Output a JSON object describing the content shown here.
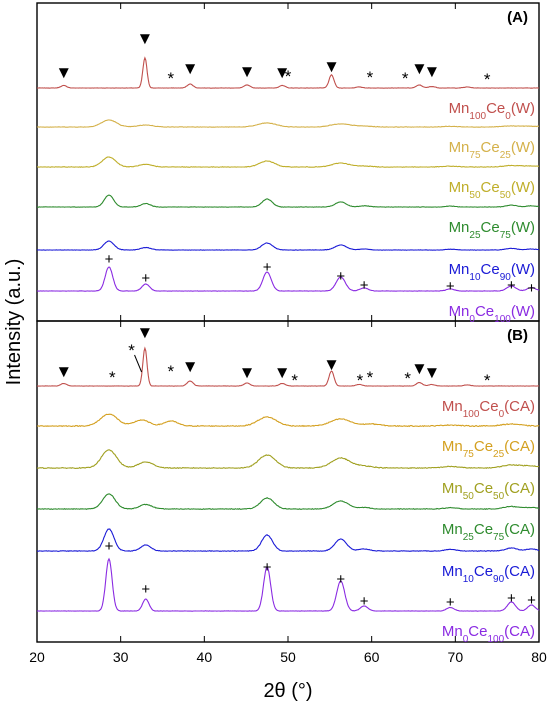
{
  "chart_data": {
    "type": "line",
    "xlabel": "2θ (°)",
    "ylabel": "Intensity (a.u.)",
    "xlim": [
      20,
      80
    ],
    "x_ticks": [
      "20",
      "30",
      "40",
      "50",
      "60",
      "70",
      "80"
    ],
    "grid": false,
    "panels": [
      {
        "tag": "(A)",
        "series": [
          {
            "name_parts": [
              [
                "Mn",
                ""
              ],
              [
                "100",
                "sub"
              ],
              [
                "Ce",
                ""
              ],
              [
                "0",
                "sub"
              ],
              [
                "(W)",
                ""
              ]
            ],
            "color": "#c0504d",
            "type": "perovskite",
            "noise": 0.35,
            "peaks": [
              [
                23.2,
                2.5,
                0.35
              ],
              [
                32.9,
                30,
                0.25
              ],
              [
                38.3,
                4,
                0.35
              ],
              [
                45.1,
                3,
                0.35
              ],
              [
                49.3,
                2.5,
                0.35
              ],
              [
                55.2,
                13,
                0.3
              ],
              [
                58.5,
                1,
                0.4
              ],
              [
                65.7,
                3,
                0.35
              ],
              [
                67.2,
                1.5,
                0.4
              ],
              [
                71.4,
                1,
                0.4
              ]
            ]
          },
          {
            "name_parts": [
              [
                "Mn",
                ""
              ],
              [
                "75",
                "sub"
              ],
              [
                "Ce",
                ""
              ],
              [
                "25",
                "sub"
              ],
              [
                "(W)",
                ""
              ]
            ],
            "color": "#d4b14a",
            "type": "ceria",
            "noise": 0.5,
            "peaks": [
              [
                28.6,
                7,
                0.9
              ],
              [
                33.0,
                2,
                0.9
              ],
              [
                47.5,
                4,
                1.1
              ],
              [
                56.3,
                3,
                1.2
              ],
              [
                59.1,
                0.8,
                1
              ],
              [
                69.4,
                0.6,
                1
              ],
              [
                76.7,
                1,
                1.1
              ],
              [
                79.1,
                0.7,
                1
              ]
            ]
          },
          {
            "name_parts": [
              [
                "Mn",
                ""
              ],
              [
                "50",
                "sub"
              ],
              [
                "Ce",
                ""
              ],
              [
                "50",
                "sub"
              ],
              [
                "(W)",
                ""
              ]
            ],
            "color": "#bfae2a",
            "type": "ceria",
            "noise": 0.55,
            "peaks": [
              [
                28.6,
                10,
                0.8
              ],
              [
                33.0,
                2.5,
                0.8
              ],
              [
                47.5,
                6,
                0.9
              ],
              [
                56.3,
                4,
                1.0
              ],
              [
                59.1,
                1,
                0.9
              ],
              [
                69.4,
                0.8,
                0.9
              ],
              [
                76.7,
                1.5,
                1.0
              ],
              [
                79.1,
                1,
                0.9
              ]
            ]
          },
          {
            "name_parts": [
              [
                "Mn",
                ""
              ],
              [
                "25",
                "sub"
              ],
              [
                "Ce",
                ""
              ],
              [
                "75",
                "sub"
              ],
              [
                "(W)",
                ""
              ]
            ],
            "color": "#2e8b2e",
            "type": "ceria",
            "noise": 0.45,
            "peaks": [
              [
                28.6,
                12,
                0.55
              ],
              [
                33.0,
                3.5,
                0.55
              ],
              [
                47.5,
                8,
                0.6
              ],
              [
                56.3,
                5,
                0.65
              ],
              [
                59.1,
                1.2,
                0.6
              ],
              [
                69.4,
                0.9,
                0.6
              ],
              [
                76.7,
                1.8,
                0.65
              ],
              [
                79.1,
                1.2,
                0.6
              ]
            ]
          },
          {
            "name_parts": [
              [
                "Mn",
                ""
              ],
              [
                "10",
                "sub"
              ],
              [
                "Ce",
                ""
              ],
              [
                "90",
                "sub"
              ],
              [
                "(W)",
                ""
              ]
            ],
            "color": "#1a1ad6",
            "type": "ceria",
            "noise": 0.4,
            "peaks": [
              [
                28.6,
                9,
                0.6
              ],
              [
                33.0,
                2.5,
                0.6
              ],
              [
                47.5,
                7,
                0.65
              ],
              [
                56.3,
                5,
                0.7
              ],
              [
                59.1,
                1,
                0.6
              ],
              [
                69.4,
                0.8,
                0.6
              ],
              [
                76.7,
                1.5,
                0.7
              ],
              [
                79.1,
                1,
                0.6
              ]
            ]
          },
          {
            "name_parts": [
              [
                "Mn",
                ""
              ],
              [
                "0",
                "sub"
              ],
              [
                "Ce",
                ""
              ],
              [
                "100",
                "sub"
              ],
              [
                "(W)",
                ""
              ]
            ],
            "color": "#8a2be2",
            "type": "ceria",
            "noise": 0.35,
            "peaks": [
              [
                28.6,
                24,
                0.45
              ],
              [
                33.0,
                7,
                0.45
              ],
              [
                47.5,
                19,
                0.5
              ],
              [
                56.3,
                14,
                0.55
              ],
              [
                59.1,
                3,
                0.5
              ],
              [
                69.4,
                2,
                0.5
              ],
              [
                76.7,
                5,
                0.55
              ],
              [
                79.1,
                3.5,
                0.5
              ]
            ]
          }
        ]
      },
      {
        "tag": "(B)",
        "series": [
          {
            "name_parts": [
              [
                "Mn",
                ""
              ],
              [
                "100",
                "sub"
              ],
              [
                "Ce",
                ""
              ],
              [
                "0",
                "sub"
              ],
              [
                "(CA)",
                ""
              ]
            ],
            "color": "#c0504d",
            "type": "perovskite",
            "noise": 0.35,
            "peaks": [
              [
                23.2,
                2.5,
                0.35
              ],
              [
                32.9,
                38,
                0.25
              ],
              [
                38.3,
                5,
                0.35
              ],
              [
                45.1,
                3,
                0.35
              ],
              [
                49.3,
                2.5,
                0.35
              ],
              [
                55.2,
                15,
                0.3
              ],
              [
                58.5,
                1.5,
                0.4
              ],
              [
                65.7,
                3.5,
                0.35
              ],
              [
                67.2,
                1.5,
                0.4
              ],
              [
                71.4,
                1,
                0.4
              ]
            ]
          },
          {
            "name_parts": [
              [
                "Mn",
                ""
              ],
              [
                "75",
                "sub"
              ],
              [
                "Ce",
                ""
              ],
              [
                "25",
                "sub"
              ],
              [
                "(CA)",
                ""
              ]
            ],
            "color": "#d4a020",
            "type": "ceria",
            "noise": 0.8,
            "peaks": [
              [
                28.6,
                12,
                1.0
              ],
              [
                32.5,
                6,
                0.9
              ],
              [
                36.0,
                5,
                0.8
              ],
              [
                47.5,
                9,
                1.1
              ],
              [
                56.3,
                7,
                1.2
              ],
              [
                60.0,
                2,
                1.0
              ],
              [
                69.4,
                1,
                1.0
              ],
              [
                76.7,
                2,
                1.1
              ]
            ]
          },
          {
            "name_parts": [
              [
                "Mn",
                ""
              ],
              [
                "50",
                "sub"
              ],
              [
                "Ce",
                ""
              ],
              [
                "50",
                "sub"
              ],
              [
                "(CA)",
                ""
              ]
            ],
            "color": "#a0a020",
            "type": "ceria",
            "noise": 0.75,
            "peaks": [
              [
                28.6,
                18,
                0.9
              ],
              [
                33.0,
                6,
                0.9
              ],
              [
                47.5,
                13,
                1.0
              ],
              [
                56.3,
                10,
                1.1
              ],
              [
                59.1,
                2,
                1.0
              ],
              [
                69.4,
                1.5,
                1.0
              ],
              [
                76.7,
                3,
                1.1
              ],
              [
                79.1,
                2,
                1.0
              ]
            ]
          },
          {
            "name_parts": [
              [
                "Mn",
                ""
              ],
              [
                "25",
                "sub"
              ],
              [
                "Ce",
                ""
              ],
              [
                "75",
                "sub"
              ],
              [
                "(CA)",
                ""
              ]
            ],
            "color": "#2e8b2e",
            "type": "ceria",
            "noise": 0.6,
            "peaks": [
              [
                28.6,
                15,
                0.75
              ],
              [
                33.0,
                4.5,
                0.75
              ],
              [
                47.5,
                11,
                0.8
              ],
              [
                56.3,
                8,
                0.9
              ],
              [
                59.1,
                1.5,
                0.8
              ],
              [
                69.4,
                1.2,
                0.8
              ],
              [
                76.7,
                2.5,
                0.9
              ],
              [
                79.1,
                1.5,
                0.8
              ]
            ]
          },
          {
            "name_parts": [
              [
                "Mn",
                ""
              ],
              [
                "10",
                "sub"
              ],
              [
                "Ce",
                ""
              ],
              [
                "90",
                "sub"
              ],
              [
                "(CA)",
                ""
              ]
            ],
            "color": "#1a1ad6",
            "type": "ceria",
            "noise": 0.55,
            "peaks": [
              [
                28.6,
                22,
                0.6
              ],
              [
                33.0,
                6,
                0.6
              ],
              [
                47.5,
                16,
                0.65
              ],
              [
                56.3,
                12,
                0.7
              ],
              [
                59.1,
                2,
                0.65
              ],
              [
                69.4,
                1.5,
                0.65
              ],
              [
                76.7,
                3,
                0.7
              ],
              [
                79.1,
                2,
                0.65
              ]
            ]
          },
          {
            "name_parts": [
              [
                "Mn",
                ""
              ],
              [
                "0",
                "sub"
              ],
              [
                "Ce",
                ""
              ],
              [
                "100",
                "sub"
              ],
              [
                "(CA)",
                ""
              ]
            ],
            "color": "#8a2be2",
            "type": "ceria",
            "noise": 0.35,
            "peaks": [
              [
                28.6,
                52,
                0.38
              ],
              [
                33.0,
                12,
                0.38
              ],
              [
                47.5,
                44,
                0.42
              ],
              [
                56.3,
                30,
                0.48
              ],
              [
                59.1,
                5,
                0.45
              ],
              [
                69.4,
                3.5,
                0.45
              ],
              [
                76.7,
                9,
                0.48
              ],
              [
                79.1,
                6,
                0.45
              ]
            ]
          }
        ]
      }
    ],
    "markers": {
      "triangle": "▼",
      "star": "*",
      "plus": "+",
      "panelA_triangles": [
        23.2,
        32.9,
        38.3,
        45.1,
        49.3,
        55.2,
        65.7,
        67.2
      ],
      "panelA_stars": [
        36.0,
        50.0,
        59.8,
        64.0,
        73.8
      ],
      "panelA_plus": [
        28.6,
        33.0,
        47.5,
        56.3,
        59.1,
        69.4,
        76.7,
        79.1
      ],
      "panelB_triangles": [
        23.2,
        32.9,
        38.3,
        45.1,
        49.3,
        55.2,
        65.7,
        67.2
      ],
      "panelB_stars": [
        29.0,
        31.3,
        36.0,
        50.8,
        58.6,
        59.8,
        64.3,
        73.8
      ],
      "panelB_plus": [
        28.6,
        33.0,
        47.5,
        56.3,
        59.1,
        69.4,
        76.7,
        79.1
      ]
    }
  }
}
